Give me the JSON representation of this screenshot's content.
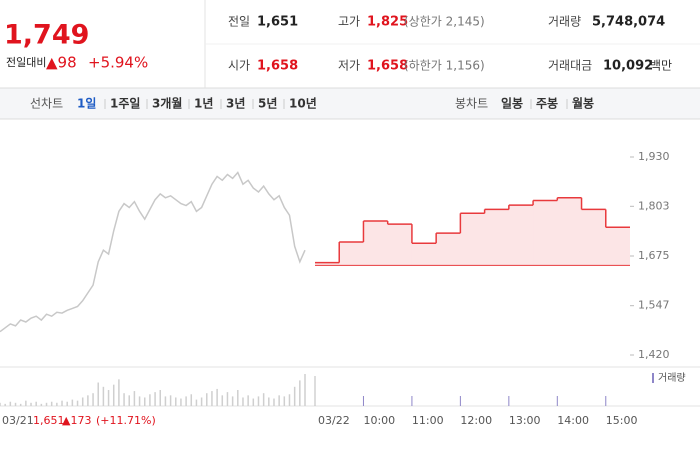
{
  "header": {
    "price": "1,749",
    "change_label": "전일대비",
    "change": "▲98",
    "change_pct": "+5.94%",
    "stats": [
      {
        "label": "전일",
        "value": "1,651"
      },
      {
        "label": "고가",
        "value": "1,825",
        "note": "(상한가 2,145)"
      },
      {
        "label": "거래량",
        "value": "5,748,074"
      },
      {
        "label": "시가",
        "value": "1,658"
      },
      {
        "label": "저가",
        "value": "1,658",
        "note": "(하한가 1,156)"
      },
      {
        "label": "거래대금",
        "value": "10,092",
        "unit": "백만"
      }
    ]
  },
  "tabs": {
    "line_label": "선차트",
    "line_items": [
      "1일",
      "1주일",
      "3개월",
      "1년",
      "3년",
      "5년",
      "10년"
    ],
    "active": 0,
    "candle_label": "봉차트",
    "candle_items": [
      "일봉",
      "주봉",
      "월봉"
    ]
  },
  "chart_data": {
    "type": "line",
    "ylim": [
      1420,
      1930
    ],
    "yticks": [
      {
        "value": 1930,
        "label": "1,930"
      },
      {
        "value": 1803,
        "label": "1,803"
      },
      {
        "value": 1675,
        "label": "1,675"
      },
      {
        "value": 1547,
        "label": "1,547"
      },
      {
        "value": 1420,
        "label": "1,420"
      }
    ],
    "volume_label": "거래량",
    "previous": {
      "date": "03/21",
      "close": "1,651",
      "change": "▲173",
      "change_pct": "(+11.71%)",
      "color": "#c8c8c8",
      "values": [
        1480,
        1490,
        1500,
        1495,
        1510,
        1505,
        1515,
        1520,
        1510,
        1525,
        1520,
        1530,
        1528,
        1535,
        1540,
        1545,
        1560,
        1580,
        1600,
        1660,
        1690,
        1680,
        1740,
        1790,
        1810,
        1800,
        1815,
        1790,
        1770,
        1795,
        1820,
        1835,
        1825,
        1830,
        1820,
        1810,
        1805,
        1815,
        1790,
        1800,
        1830,
        1860,
        1880,
        1870,
        1885,
        1875,
        1890,
        1860,
        1870,
        1850,
        1840,
        1855,
        1835,
        1820,
        1830,
        1800,
        1780,
        1700,
        1660,
        1690
      ],
      "volume": [
        3,
        2,
        4,
        3,
        2,
        5,
        3,
        4,
        2,
        3,
        4,
        3,
        5,
        4,
        6,
        5,
        8,
        10,
        12,
        22,
        18,
        15,
        20,
        25,
        12,
        10,
        14,
        9,
        8,
        11,
        13,
        15,
        9,
        10,
        8,
        7,
        9,
        11,
        6,
        8,
        12,
        14,
        16,
        10,
        13,
        9,
        15,
        8,
        10,
        7,
        9,
        12,
        8,
        7,
        10,
        9,
        11,
        18,
        24,
        30
      ]
    },
    "today": {
      "date": "03/22",
      "color": "#e8393c",
      "baseline": 1651,
      "x": [
        9,
        9.5,
        10,
        10.5,
        11,
        11.5,
        12,
        12.5,
        13,
        13.5,
        14,
        14.5,
        15
      ],
      "values": [
        1658,
        1711,
        1765,
        1757,
        1708,
        1734,
        1785,
        1795,
        1806,
        1818,
        1825,
        1795,
        1749
      ],
      "xlim": [
        9,
        15.5
      ],
      "xticks": [
        {
          "value": 10,
          "label": "10:00"
        },
        {
          "value": 11,
          "label": "11:00"
        },
        {
          "value": 12,
          "label": "12:00"
        },
        {
          "value": 13,
          "label": "13:00"
        },
        {
          "value": 14,
          "label": "14:00"
        },
        {
          "value": 15,
          "label": "15:00"
        }
      ]
    }
  }
}
